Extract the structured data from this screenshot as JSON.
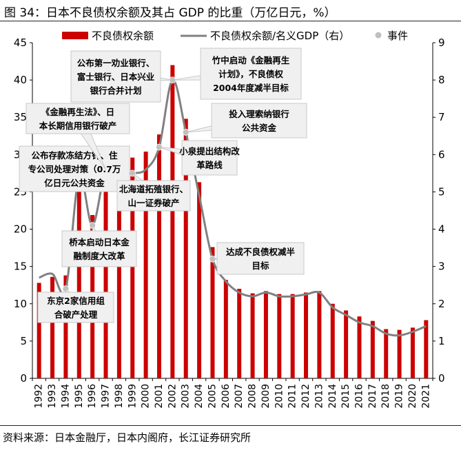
{
  "title": "图 34：日本不良债权余额及其占 GDP 的比重（万亿日元，%）",
  "source": "资料来源：日本金融厅，日本内阁府，长江证券研究所",
  "colors": {
    "bar": "#cc0000",
    "line": "#808080",
    "event": "#bfbfbf",
    "box_fill": "#f0f0f0",
    "box_stroke": "#c8c8c8"
  },
  "chart_data": {
    "type": "bar",
    "categories": [
      "1992",
      "1993",
      "1994",
      "1995",
      "1996",
      "1997",
      "1998",
      "1999",
      "2000",
      "2001",
      "2002",
      "2003",
      "2004",
      "2005",
      "2006",
      "2007",
      "2008",
      "2009",
      "2010",
      "2011",
      "2012",
      "2013",
      "2014",
      "2015",
      "2016",
      "2017",
      "2018",
      "2019",
      "2020",
      "2021"
    ],
    "series": [
      {
        "name": "不良债权余额",
        "axis": "left",
        "type": "bar",
        "values": [
          12.8,
          13.6,
          13.8,
          28.5,
          21.9,
          28.0,
          29.8,
          29.6,
          30.4,
          32.7,
          42.0,
          34.8,
          26.3,
          17.6,
          13.2,
          12.0,
          11.4,
          11.7,
          11.3,
          11.3,
          11.5,
          11.7,
          10.0,
          9.1,
          8.3,
          7.7,
          6.6,
          6.5,
          6.8,
          7.8
        ]
      },
      {
        "name": "不良债权余额/名义GDP（右）",
        "axis": "right",
        "type": "line",
        "values": [
          2.7,
          2.8,
          2.4,
          5.4,
          4.1,
          5.6,
          5.5,
          5.5,
          5.6,
          6.2,
          8.0,
          6.6,
          4.9,
          3.2,
          2.6,
          2.3,
          2.2,
          2.3,
          2.2,
          2.2,
          2.25,
          2.3,
          1.9,
          1.7,
          1.5,
          1.4,
          1.2,
          1.15,
          1.25,
          1.4
        ]
      },
      {
        "name": "事件",
        "axis": "right",
        "type": "scatter",
        "points": [
          [
            "1994",
            2.4
          ],
          [
            "1995",
            5.4
          ],
          [
            "1996",
            4.1
          ],
          [
            "1997",
            5.6
          ],
          [
            "1999",
            5.5
          ],
          [
            "2001",
            6.2
          ],
          [
            "2002",
            8.0
          ],
          [
            "2003",
            6.6
          ],
          [
            "2005",
            3.2
          ]
        ]
      }
    ],
    "y_left": {
      "min": 0,
      "max": 45,
      "ticks": [
        0,
        5,
        10,
        15,
        20,
        25,
        30,
        35,
        40,
        45
      ]
    },
    "y_right": {
      "min": 0,
      "max": 9,
      "ticks": [
        0,
        1,
        2,
        3,
        4,
        5,
        6,
        7,
        8,
        9
      ]
    },
    "legend": {
      "position": "top",
      "entries": [
        "不良债权余额",
        "不良债权余额/名义GDP（右）",
        "事件"
      ]
    },
    "annotations": [
      {
        "lines": [
          "东京2家信用组",
          "合破产处理"
        ]
      },
      {
        "lines": [
          "公布存款冻结方针、住",
          "专公司处理对策（0.7万",
          "亿日元公共资金"
        ]
      },
      {
        "lines": [
          "桥本启动日本金",
          "融制度大改革"
        ]
      },
      {
        "lines": [
          "《金融再生法》、日",
          "本长期信用银行破产"
        ]
      },
      {
        "lines": [
          "北海道拓殖银行、",
          "山一证券破产"
        ]
      },
      {
        "lines": [
          "公布第一劝业银行、",
          "富士银行、日本兴业",
          "银行合并计划"
        ]
      },
      {
        "lines": [
          "小泉提出结构改",
          "革路线"
        ]
      },
      {
        "lines": [
          "竹中启动《金融再生",
          "计划》，不良债权",
          "2004年度减半目标"
        ]
      },
      {
        "lines": [
          "投入理索纳银行",
          "公共资金"
        ]
      },
      {
        "lines": [
          "达成不良债权减半",
          "目标"
        ]
      }
    ]
  }
}
